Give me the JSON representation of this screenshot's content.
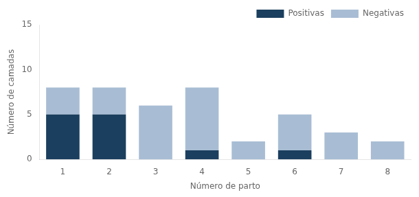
{
  "chart_data": {
    "type": "bar",
    "stacked": true,
    "categories": [
      1,
      2,
      3,
      4,
      5,
      6,
      7,
      8
    ],
    "series": [
      {
        "name": "Positivas",
        "color": "#1b3f5e",
        "values": [
          5,
          5,
          0,
          1,
          0,
          1,
          0,
          0
        ]
      },
      {
        "name": "Negativas",
        "color": "#a8bdd4",
        "values": [
          3,
          3,
          6,
          7,
          2,
          4,
          3,
          2
        ]
      }
    ],
    "xlabel": "Número de parto",
    "ylabel": "Número de camadas",
    "ylim": [
      0,
      15
    ],
    "yticks": [
      0,
      5,
      10,
      15
    ],
    "grid": false,
    "legend": "upper right"
  }
}
